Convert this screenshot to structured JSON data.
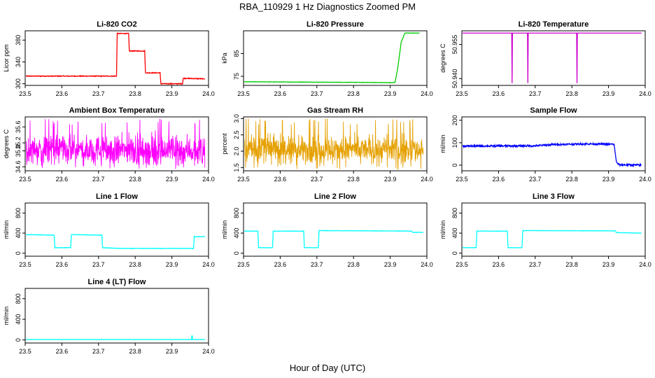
{
  "figure": {
    "title": "RBA_110929  1 Hz Diagnostics Zoomed PM",
    "xlabel": "Hour of Day (UTC)"
  },
  "chart_data": [
    {
      "id": "co2",
      "type": "line",
      "title": "Li-820 CO2",
      "ylabel": "Licor ppm",
      "color": "#ff0000",
      "xlim": [
        23.5,
        24.0
      ],
      "ylim": [
        297,
        397
      ],
      "xticks": [
        23.5,
        23.6,
        23.7,
        23.8,
        23.9,
        24.0
      ],
      "yticks": [
        300,
        340,
        380
      ],
      "series": [
        {
          "style": "flat-noise",
          "noise": 0.7,
          "points": [
            [
              23.5,
              314
            ],
            [
              23.749,
              314
            ],
            [
              23.751,
              392
            ],
            [
              23.782,
              392
            ],
            [
              23.784,
              360
            ],
            [
              23.826,
              360
            ],
            [
              23.828,
              320
            ],
            [
              23.868,
              320
            ],
            [
              23.87,
              300
            ],
            [
              23.929,
              300
            ],
            [
              23.931,
              310
            ],
            [
              23.99,
              309
            ]
          ]
        }
      ]
    },
    {
      "id": "pressure",
      "type": "line",
      "title": "Li-820 Pressure",
      "ylabel": "kPa",
      "color": "#00cc00",
      "xlim": [
        23.5,
        24.0
      ],
      "ylim": [
        71,
        95
      ],
      "xticks": [
        23.5,
        23.6,
        23.7,
        23.8,
        23.9,
        24.0
      ],
      "yticks": [
        75,
        85
      ],
      "series": [
        {
          "style": "flat-noise",
          "noise": 0.08,
          "points": [
            [
              23.5,
              72.6
            ],
            [
              23.84,
              72.3
            ],
            [
              23.905,
              72.2
            ],
            [
              23.913,
              72.3
            ],
            [
              23.92,
              78
            ],
            [
              23.93,
              90
            ],
            [
              23.94,
              94
            ],
            [
              23.98,
              94
            ]
          ]
        }
      ]
    },
    {
      "id": "temperature",
      "type": "line",
      "title": "Li-820 Temperature",
      "ylabel": "degrees C",
      "color": "#cc00cc",
      "xlim": [
        23.5,
        24.0
      ],
      "ylim": [
        50.937,
        50.961
      ],
      "xticks": [
        23.5,
        23.6,
        23.7,
        23.8,
        23.9,
        24.0
      ],
      "yticks": [
        50.94,
        50.955
      ],
      "series": [
        {
          "style": "flat-noise",
          "noise": 0,
          "points": [
            [
              23.5,
              50.96
            ],
            [
              23.636,
              50.96
            ],
            [
              23.637,
              50.938
            ],
            [
              23.638,
              50.96
            ],
            [
              23.679,
              50.96
            ],
            [
              23.68,
              50.938
            ],
            [
              23.681,
              50.96
            ],
            [
              23.813,
              50.96
            ],
            [
              23.814,
              50.938
            ],
            [
              23.815,
              50.96
            ],
            [
              23.99,
              50.96
            ]
          ]
        }
      ]
    },
    {
      "id": "ambient",
      "type": "line",
      "title": "Ambient Box Temperature",
      "ylabel": "degrees C",
      "color": "#ff00ff",
      "xlim": [
        23.5,
        24.0
      ],
      "ylim": [
        34.5,
        35.85
      ],
      "xticks": [
        23.5,
        23.6,
        23.7,
        23.8,
        23.9,
        24.0
      ],
      "yticks": [
        34.6,
        35.0,
        35.2,
        35.6
      ],
      "series": [
        {
          "style": "noise",
          "mean": 35.02,
          "amplitude": 0.28,
          "min": 34.55,
          "max": 35.8,
          "range": [
            23.5,
            23.99
          ]
        }
      ]
    },
    {
      "id": "rh",
      "type": "line",
      "title": "Gas Stream RH",
      "ylabel": "percent",
      "color": "#e5a000",
      "xlim": [
        23.5,
        24.0
      ],
      "ylim": [
        1.4,
        3.05
      ],
      "xticks": [
        23.5,
        23.6,
        23.7,
        23.8,
        23.9,
        24.0
      ],
      "yticks": [
        1.5,
        2.0,
        2.5,
        3.0
      ],
      "series": [
        {
          "style": "noise",
          "mean": 2.05,
          "amplitude": 0.32,
          "min": 1.45,
          "max": 3.0,
          "range": [
            23.5,
            23.99
          ]
        }
      ]
    },
    {
      "id": "sample",
      "type": "line",
      "title": "Sample Flow",
      "ylabel": "ml/min",
      "color": "#0000ff",
      "xlim": [
        23.5,
        24.0
      ],
      "ylim": [
        -25,
        215
      ],
      "xticks": [
        23.5,
        23.6,
        23.7,
        23.8,
        23.9,
        24.0
      ],
      "yticks": [
        0,
        100,
        200
      ],
      "series": [
        {
          "style": "flat-noise",
          "noise": 4,
          "points": [
            [
              23.5,
              85
            ],
            [
              23.7,
              86
            ],
            [
              23.75,
              92
            ],
            [
              23.85,
              95
            ],
            [
              23.915,
              93
            ],
            [
              23.922,
              10
            ],
            [
              23.93,
              2
            ],
            [
              23.99,
              0
            ]
          ]
        }
      ]
    },
    {
      "id": "line1",
      "type": "line",
      "title": "Line 1 Flow",
      "ylabel": "ml/min",
      "color": "#00ffff",
      "xlim": [
        23.5,
        24.0
      ],
      "ylim": [
        -60,
        1000
      ],
      "xticks": [
        23.5,
        23.6,
        23.7,
        23.8,
        23.9,
        24.0
      ],
      "yticks": [
        0,
        400,
        800
      ],
      "series": [
        {
          "style": "flat-noise",
          "noise": 4,
          "points": [
            [
              23.5,
              370
            ],
            [
              23.579,
              360
            ],
            [
              23.581,
              110
            ],
            [
              23.624,
              110
            ],
            [
              23.626,
              370
            ],
            [
              23.709,
              360
            ],
            [
              23.711,
              110
            ],
            [
              23.759,
              95
            ],
            [
              23.959,
              95
            ],
            [
              23.961,
              330
            ],
            [
              23.99,
              330
            ]
          ]
        }
      ]
    },
    {
      "id": "line2",
      "type": "line",
      "title": "Line 2 Flow",
      "ylabel": "ml/min",
      "color": "#00ffff",
      "xlim": [
        23.5,
        24.0
      ],
      "ylim": [
        -60,
        1000
      ],
      "xticks": [
        23.5,
        23.6,
        23.7,
        23.8,
        23.9,
        24.0
      ],
      "yticks": [
        0,
        400,
        800
      ],
      "series": [
        {
          "style": "flat-noise",
          "noise": 3,
          "points": [
            [
              23.5,
              440
            ],
            [
              23.539,
              440
            ],
            [
              23.541,
              110
            ],
            [
              23.579,
              110
            ],
            [
              23.581,
              440
            ],
            [
              23.664,
              440
            ],
            [
              23.666,
              110
            ],
            [
              23.704,
              110
            ],
            [
              23.706,
              450
            ],
            [
              23.959,
              440
            ],
            [
              23.961,
              415
            ],
            [
              23.99,
              415
            ]
          ]
        }
      ]
    },
    {
      "id": "line3",
      "type": "line",
      "title": "Line 3 Flow",
      "ylabel": "ml/min",
      "color": "#00ffff",
      "xlim": [
        23.5,
        24.0
      ],
      "ylim": [
        -60,
        1000
      ],
      "xticks": [
        23.5,
        23.6,
        23.7,
        23.8,
        23.9,
        24.0
      ],
      "yticks": [
        0,
        400,
        800
      ],
      "series": [
        {
          "style": "flat-noise",
          "noise": 3,
          "points": [
            [
              23.5,
              440
            ],
            [
              23.501,
              110
            ],
            [
              23.539,
              110
            ],
            [
              23.541,
              440
            ],
            [
              23.624,
              440
            ],
            [
              23.626,
              110
            ],
            [
              23.664,
              110
            ],
            [
              23.666,
              450
            ],
            [
              23.919,
              445
            ],
            [
              23.921,
              410
            ],
            [
              23.99,
              400
            ]
          ]
        }
      ]
    },
    {
      "id": "line4",
      "type": "line",
      "title": "Line 4 (LT) Flow",
      "ylabel": "ml/min",
      "color": "#00ffff",
      "xlim": [
        23.5,
        24.0
      ],
      "ylim": [
        -60,
        1000
      ],
      "xticks": [
        23.5,
        23.6,
        23.7,
        23.8,
        23.9,
        24.0
      ],
      "yticks": [
        0,
        400,
        800
      ],
      "series": [
        {
          "style": "flat-noise",
          "noise": 2,
          "points": [
            [
              23.5,
              8
            ],
            [
              23.953,
              8
            ],
            [
              23.955,
              90
            ],
            [
              23.957,
              8
            ],
            [
              23.99,
              8
            ]
          ]
        }
      ]
    }
  ]
}
